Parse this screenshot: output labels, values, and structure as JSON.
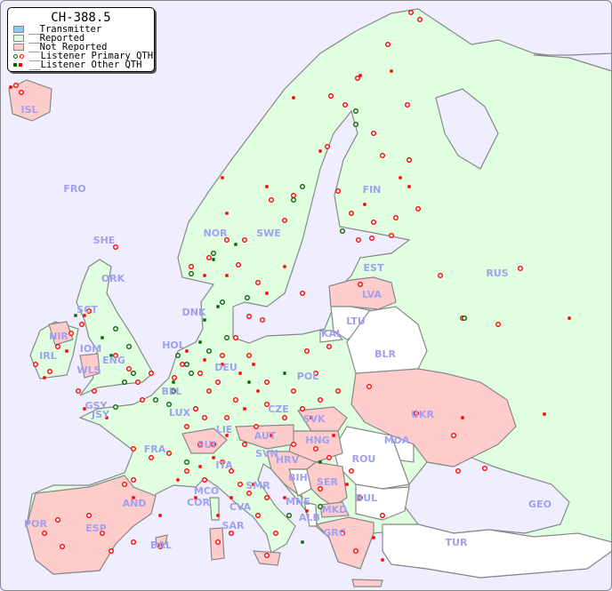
{
  "legend": {
    "title": "CH-388.5",
    "items": [
      {
        "label": "__Transmitter",
        "color": "#88ccee"
      },
      {
        "label": "__Reported",
        "color": "#e0ffe0"
      },
      {
        "label": "__Not Reported",
        "color": "#ffcccc"
      },
      {
        "label": "__Listener Primary QTH",
        "colors": [
          "#006600",
          "#ff0000"
        ]
      },
      {
        "label": "__Listener Other QTH",
        "colors": [
          "#006600",
          "#ff0000"
        ]
      }
    ]
  },
  "colors": {
    "sea": "#eeeeff",
    "reported": "#e0ffe0",
    "not_reported": "#ffcccc",
    "no_data": "#ffffff",
    "border": "#888888",
    "label": "#a0a0f0"
  },
  "countries": [
    "ISL",
    "FRO",
    "SHE",
    "ORK",
    "NOR",
    "SWE",
    "FIN",
    "EST",
    "RUS",
    "LVA",
    "LTU",
    "KAL",
    "BLR",
    "DNK",
    "HOL",
    "POL",
    "DEU",
    "BEL",
    "LUX",
    "CZE",
    "SVK",
    "UKR",
    "MDA",
    "HNG",
    "AUT",
    "SUI",
    "LIE",
    "FRA",
    "SVN",
    "HRV",
    "ROU",
    "BIH",
    "SER",
    "BUL",
    "MNE",
    "MKD",
    "ALB",
    "GRC",
    "TUR",
    "GEO",
    "ITA",
    "SMR",
    "MCO",
    "COR",
    "CVA",
    "SAR",
    "AND",
    "POR",
    "ESP",
    "BAL",
    "IRL",
    "NIR",
    "IOM",
    "WLS",
    "ENG",
    "SCT",
    "GSY",
    "JSY"
  ]
}
